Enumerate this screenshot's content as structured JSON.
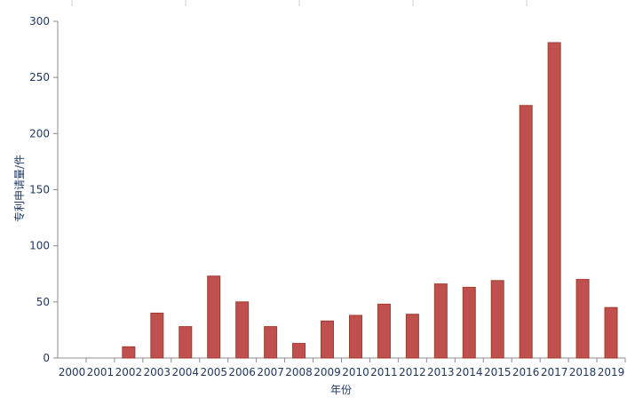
{
  "chart_data": {
    "type": "bar",
    "title": "",
    "xlabel": "年份",
    "ylabel": "专利申请量/件",
    "categories": [
      "2000",
      "2001",
      "2002",
      "2003",
      "2004",
      "2005",
      "2006",
      "2007",
      "2008",
      "2009",
      "2010",
      "2011",
      "2012",
      "2013",
      "2014",
      "2015",
      "2016",
      "2017",
      "2018",
      "2019"
    ],
    "values": [
      0,
      0,
      10,
      40,
      28,
      73,
      50,
      28,
      13,
      33,
      38,
      48,
      39,
      66,
      63,
      69,
      225,
      281,
      70,
      45
    ],
    "ylim": [
      0,
      300
    ],
    "yticks": [
      "0",
      "50",
      "100",
      "150",
      "200",
      "250",
      "300"
    ],
    "grid": false,
    "legend": "none",
    "colors": {
      "bar_fill": "#c0504d",
      "bar_stroke": "#a33a2c"
    }
  }
}
